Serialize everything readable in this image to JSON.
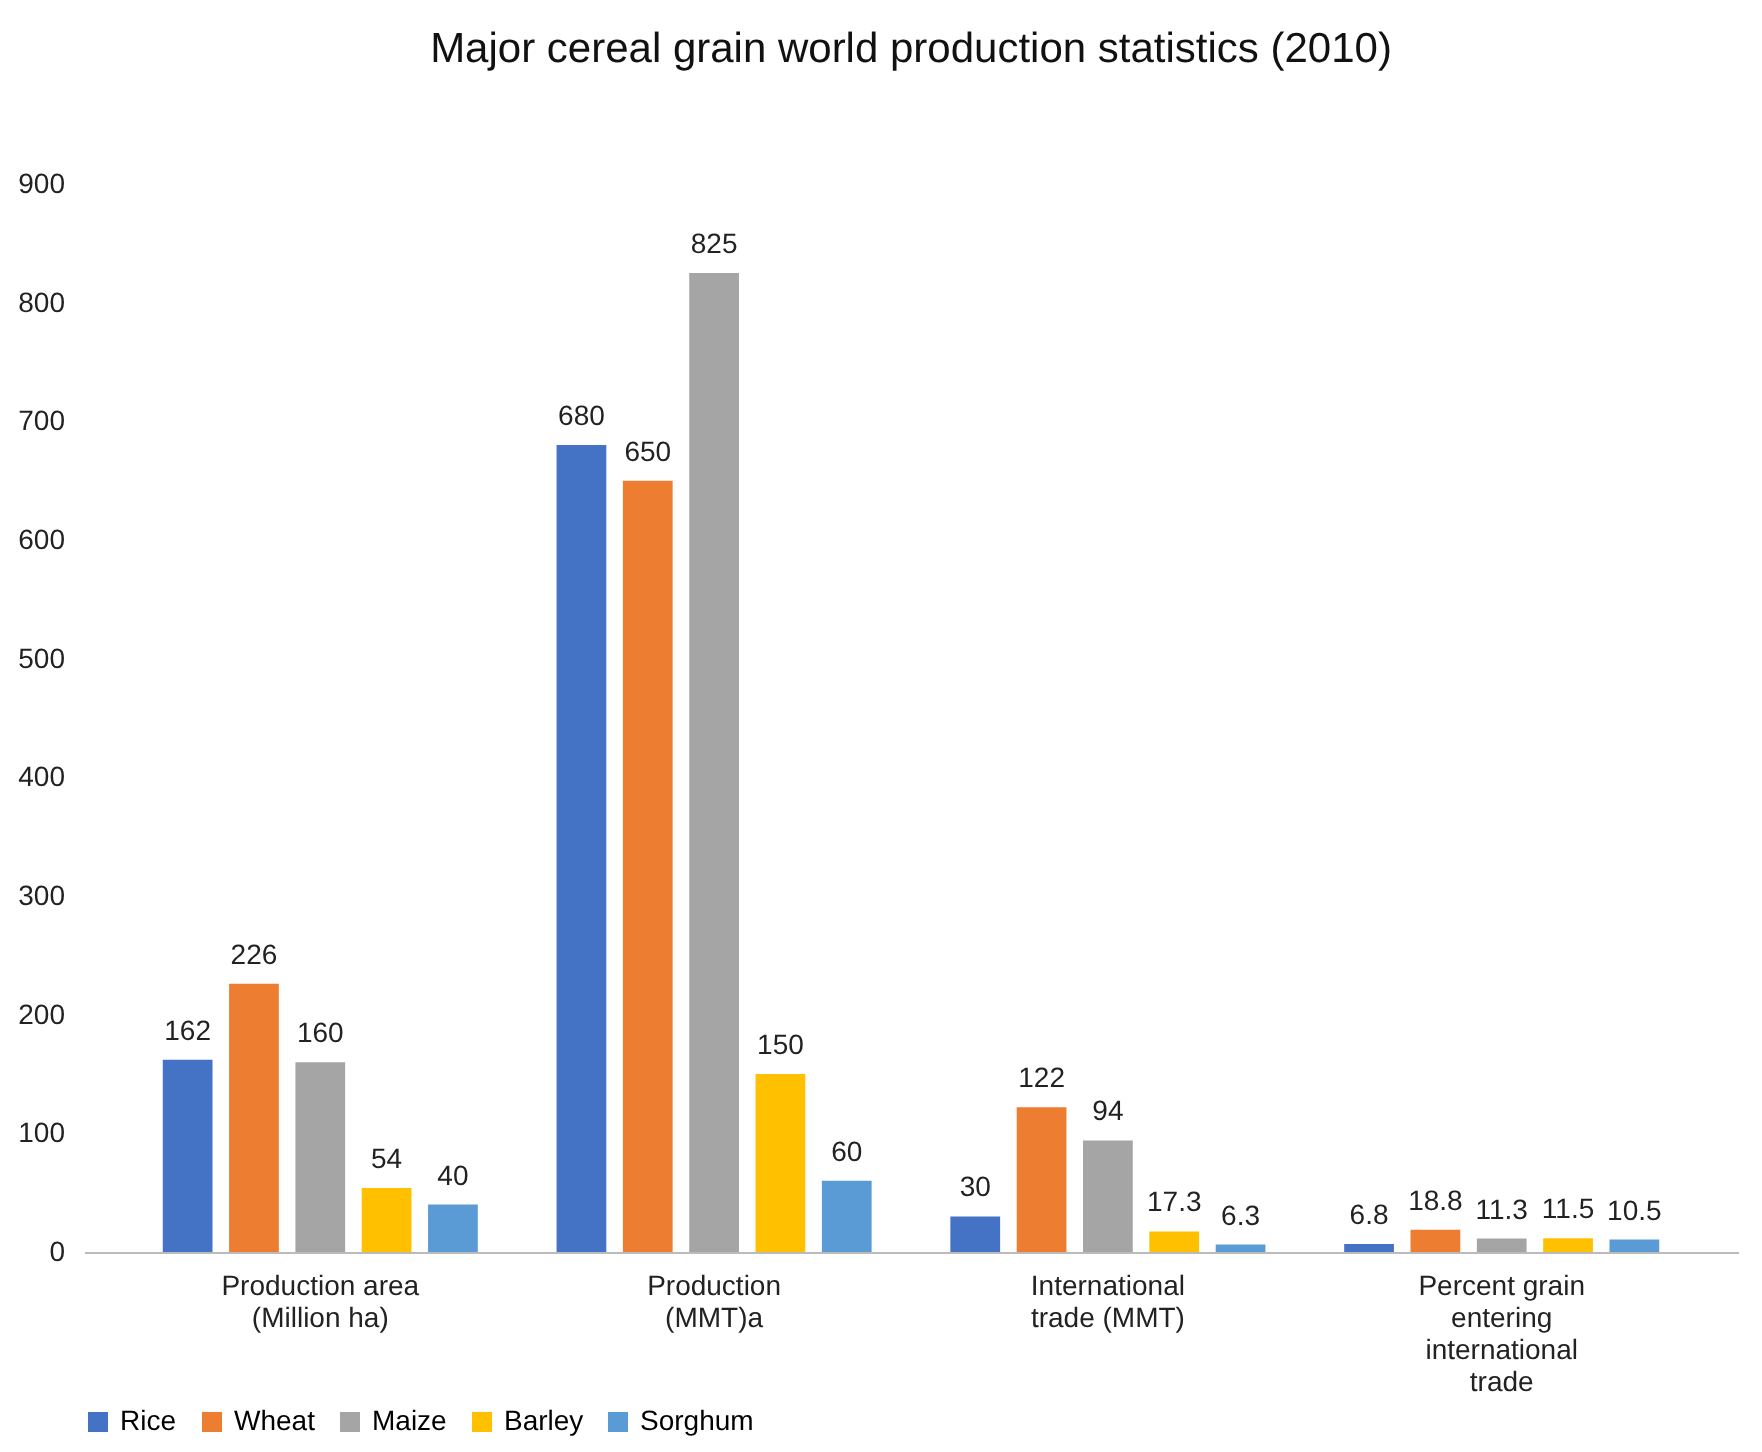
{
  "chart_data": {
    "type": "bar",
    "title": "Major cereal grain world production statistics (2010)",
    "categories": [
      "Production area (Million ha)",
      "Production (MMT)a",
      "International trade (MMT)",
      "Percent grain entering international trade"
    ],
    "series": [
      {
        "name": "Rice",
        "color": "#4472c4",
        "values": [
          162,
          680,
          30,
          6.8
        ]
      },
      {
        "name": "Wheat",
        "color": "#ed7d31",
        "values": [
          226,
          650,
          122,
          18.8
        ]
      },
      {
        "name": "Maize",
        "color": "#a5a5a5",
        "values": [
          160,
          825,
          94,
          11.3
        ]
      },
      {
        "name": "Barley",
        "color": "#ffc000",
        "values": [
          54,
          150,
          17.3,
          11.5
        ]
      },
      {
        "name": "Sorghum",
        "color": "#5b9bd5",
        "values": [
          40,
          60,
          6.3,
          10.5
        ]
      }
    ],
    "ylim": [
      0,
      900
    ],
    "yticks": [
      0,
      100,
      200,
      300,
      400,
      500,
      600,
      700,
      800,
      900
    ],
    "grid": false,
    "legend": "bottom",
    "data_labels": true
  }
}
